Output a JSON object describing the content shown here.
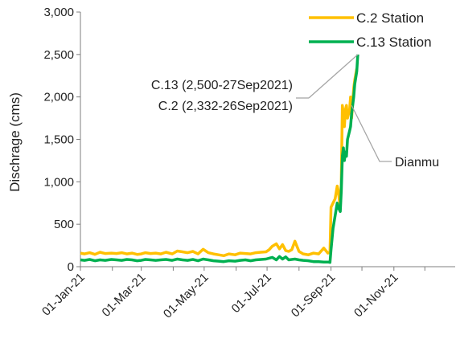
{
  "chart_data": {
    "type": "line",
    "title": "",
    "xlabel": "",
    "ylabel": "Dischrage (cms)",
    "ylim": [
      0,
      3000
    ],
    "yticks": [
      "0",
      "500",
      "1,000",
      "1,500",
      "2,000",
      "2,500",
      "3,000"
    ],
    "xlim": [
      "2021-01-01",
      "2021-12-31"
    ],
    "xticks": [
      "01-Jan-21",
      "01-Mar-21",
      "01-May-21",
      "01-Jul-21",
      "01-Sep-21",
      "01-Nov-21"
    ],
    "grid": false,
    "legend_position": "top-right",
    "series": [
      {
        "name": "C.2 Station",
        "color": "#FFC000",
        "x": [
          "2021-01-01",
          "2021-01-05",
          "2021-01-10",
          "2021-01-15",
          "2021-01-20",
          "2021-01-25",
          "2021-01-31",
          "2021-02-05",
          "2021-02-10",
          "2021-02-15",
          "2021-02-20",
          "2021-02-25",
          "2021-03-01",
          "2021-03-05",
          "2021-03-10",
          "2021-03-15",
          "2021-03-20",
          "2021-03-25",
          "2021-03-31",
          "2021-04-05",
          "2021-04-10",
          "2021-04-15",
          "2021-04-20",
          "2021-04-25",
          "2021-04-30",
          "2021-05-05",
          "2021-05-10",
          "2021-05-15",
          "2021-05-20",
          "2021-05-25",
          "2021-05-31",
          "2021-06-05",
          "2021-06-10",
          "2021-06-15",
          "2021-06-20",
          "2021-06-25",
          "2021-06-30",
          "2021-07-03",
          "2021-07-06",
          "2021-07-10",
          "2021-07-13",
          "2021-07-16",
          "2021-07-19",
          "2021-07-22",
          "2021-07-25",
          "2021-07-28",
          "2021-08-01",
          "2021-08-05",
          "2021-08-10",
          "2021-08-15",
          "2021-08-20",
          "2021-08-25",
          "2021-08-29",
          "2021-08-31",
          "2021-09-01",
          "2021-09-03",
          "2021-09-05",
          "2021-09-07",
          "2021-09-08",
          "2021-09-10",
          "2021-09-11",
          "2021-09-12",
          "2021-09-13",
          "2021-09-14",
          "2021-09-15",
          "2021-09-16",
          "2021-09-17",
          "2021-09-19",
          "2021-09-20",
          "2021-09-21",
          "2021-09-23",
          "2021-09-24",
          "2021-09-26"
        ],
        "values": [
          160,
          150,
          165,
          145,
          170,
          155,
          160,
          155,
          165,
          150,
          160,
          145,
          150,
          165,
          155,
          160,
          150,
          170,
          150,
          185,
          175,
          165,
          180,
          150,
          205,
          165,
          150,
          140,
          130,
          150,
          140,
          160,
          155,
          150,
          165,
          170,
          175,
          200,
          240,
          270,
          210,
          260,
          190,
          180,
          200,
          300,
          180,
          150,
          140,
          160,
          150,
          220,
          160,
          170,
          700,
          750,
          800,
          950,
          900,
          700,
          1000,
          1900,
          1800,
          1650,
          1850,
          1900,
          1750,
          1850,
          2000,
          1750,
          2100,
          2200,
          2332
        ]
      },
      {
        "name": "C.13 Station",
        "color": "#00B050",
        "x": [
          "2021-01-01",
          "2021-01-05",
          "2021-01-10",
          "2021-01-15",
          "2021-01-20",
          "2021-01-25",
          "2021-01-31",
          "2021-02-05",
          "2021-02-10",
          "2021-02-15",
          "2021-02-20",
          "2021-02-25",
          "2021-03-01",
          "2021-03-05",
          "2021-03-10",
          "2021-03-15",
          "2021-03-20",
          "2021-03-25",
          "2021-03-31",
          "2021-04-05",
          "2021-04-10",
          "2021-04-15",
          "2021-04-20",
          "2021-04-25",
          "2021-04-30",
          "2021-05-05",
          "2021-05-10",
          "2021-05-15",
          "2021-05-20",
          "2021-05-25",
          "2021-05-31",
          "2021-06-05",
          "2021-06-10",
          "2021-06-15",
          "2021-06-20",
          "2021-06-25",
          "2021-06-30",
          "2021-07-03",
          "2021-07-06",
          "2021-07-10",
          "2021-07-13",
          "2021-07-16",
          "2021-07-19",
          "2021-07-22",
          "2021-07-25",
          "2021-07-28",
          "2021-08-01",
          "2021-08-05",
          "2021-08-10",
          "2021-08-15",
          "2021-08-20",
          "2021-08-25",
          "2021-08-29",
          "2021-08-31",
          "2021-09-01",
          "2021-09-03",
          "2021-09-05",
          "2021-09-07",
          "2021-09-08",
          "2021-09-10",
          "2021-09-11",
          "2021-09-12",
          "2021-09-13",
          "2021-09-14",
          "2021-09-15",
          "2021-09-16",
          "2021-09-17",
          "2021-09-19",
          "2021-09-20",
          "2021-09-21",
          "2021-09-23",
          "2021-09-24",
          "2021-09-26",
          "2021-09-27"
        ],
        "values": [
          80,
          75,
          85,
          70,
          80,
          75,
          85,
          80,
          75,
          85,
          80,
          70,
          75,
          85,
          80,
          75,
          80,
          85,
          75,
          90,
          80,
          75,
          85,
          70,
          90,
          80,
          70,
          65,
          60,
          70,
          65,
          75,
          80,
          70,
          80,
          85,
          90,
          100,
          110,
          80,
          120,
          90,
          115,
          80,
          85,
          90,
          80,
          75,
          70,
          60,
          60,
          55,
          55,
          50,
          200,
          450,
          600,
          750,
          700,
          650,
          900,
          1300,
          1400,
          1250,
          1350,
          1300,
          1500,
          1600,
          1650,
          1800,
          2000,
          2150,
          2300,
          2500
        ]
      }
    ],
    "annotations": [
      {
        "text": "C.13 (2,500-27Sep2021)",
        "x": "2021-09-27",
        "y": 2500
      },
      {
        "text": "C.2 (2,332-26Sep2021)",
        "x": "2021-09-26",
        "y": 2332
      },
      {
        "text": "Dianmu",
        "x": "2021-09-21",
        "y": 1900
      }
    ]
  }
}
